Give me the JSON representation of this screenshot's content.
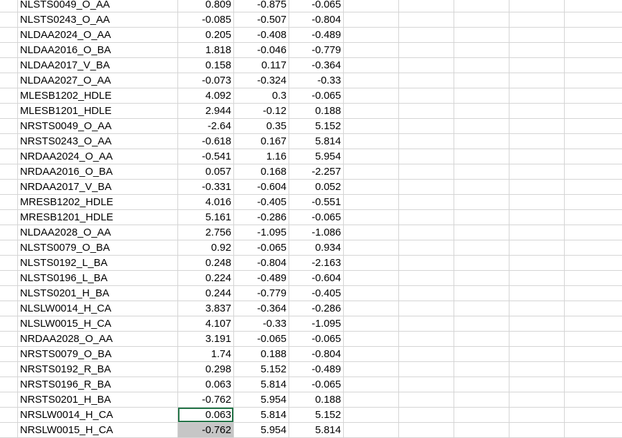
{
  "sheet": {
    "rows": [
      {
        "label": "NLSTS0049_O_AA",
        "v1": "0.809",
        "v2": "-0.875",
        "v3": "-0.065"
      },
      {
        "label": "NLSTS0243_O_AA",
        "v1": "-0.085",
        "v2": "-0.507",
        "v3": "-0.804"
      },
      {
        "label": "NLDAA2024_O_AA",
        "v1": "0.205",
        "v2": "-0.408",
        "v3": "-0.489"
      },
      {
        "label": "NLDAA2016_O_BA",
        "v1": "1.818",
        "v2": "-0.046",
        "v3": "-0.779"
      },
      {
        "label": "NLDAA2017_V_BA",
        "v1": "0.158",
        "v2": "0.117",
        "v3": "-0.364"
      },
      {
        "label": "NLDAA2027_O_AA",
        "v1": "-0.073",
        "v2": "-0.324",
        "v3": "-0.33"
      },
      {
        "label": "MLESB1202_HDLE",
        "v1": "4.092",
        "v2": "0.3",
        "v3": "-0.065"
      },
      {
        "label": "MLESB1201_HDLE",
        "v1": "2.944",
        "v2": "-0.12",
        "v3": "0.188"
      },
      {
        "label": "NRSTS0049_O_AA",
        "v1": "-2.64",
        "v2": "0.35",
        "v3": "5.152"
      },
      {
        "label": "NRSTS0243_O_AA",
        "v1": "-0.618",
        "v2": "0.167",
        "v3": "5.814"
      },
      {
        "label": "NRDAA2024_O_AA",
        "v1": "-0.541",
        "v2": "1.16",
        "v3": "5.954"
      },
      {
        "label": "NRDAA2016_O_BA",
        "v1": "0.057",
        "v2": "0.168",
        "v3": "-2.257"
      },
      {
        "label": "NRDAA2017_V_BA",
        "v1": "-0.331",
        "v2": "-0.604",
        "v3": "0.052"
      },
      {
        "label": "MRESB1202_HDLE",
        "v1": "4.016",
        "v2": "-0.405",
        "v3": "-0.551"
      },
      {
        "label": "MRESB1201_HDLE",
        "v1": "5.161",
        "v2": "-0.286",
        "v3": "-0.065"
      },
      {
        "label": "NLDAA2028_O_AA",
        "v1": "2.756",
        "v2": "-1.095",
        "v3": "-1.086"
      },
      {
        "label": "NLSTS0079_O_BA",
        "v1": "0.92",
        "v2": "-0.065",
        "v3": "0.934"
      },
      {
        "label": "NLSTS0192_L_BA",
        "v1": "0.248",
        "v2": "-0.804",
        "v3": "-2.163"
      },
      {
        "label": "NLSTS0196_L_BA",
        "v1": "0.224",
        "v2": "-0.489",
        "v3": "-0.604"
      },
      {
        "label": "NLSTS0201_H_BA",
        "v1": "0.244",
        "v2": "-0.779",
        "v3": "-0.405"
      },
      {
        "label": "NLSLW0014_H_CA",
        "v1": "3.837",
        "v2": "-0.364",
        "v3": "-0.286"
      },
      {
        "label": "NLSLW0015_H_CA",
        "v1": "4.107",
        "v2": "-0.33",
        "v3": "-1.095"
      },
      {
        "label": "NRDAA2028_O_AA",
        "v1": "3.191",
        "v2": "-0.065",
        "v3": "-0.065"
      },
      {
        "label": "NRSTS0079_O_BA",
        "v1": "1.74",
        "v2": "0.188",
        "v3": "-0.804"
      },
      {
        "label": "NRSTS0192_R_BA",
        "v1": "0.298",
        "v2": "5.152",
        "v3": "-0.489"
      },
      {
        "label": "NRSTS0196_R_BA",
        "v1": "0.063",
        "v2": "5.814",
        "v3": "-0.065"
      },
      {
        "label": "NRSTS0201_H_BA",
        "v1": "-0.762",
        "v2": "5.954",
        "v3": "0.188"
      },
      {
        "label": "NRSLW0014_H_CA",
        "v1": "0.063",
        "v2": "5.814",
        "v3": "5.152"
      },
      {
        "label": "NRSLW0015_H_CA",
        "v1": "-0.762",
        "v2": "5.954",
        "v3": "5.814"
      }
    ],
    "active_row_index": 27,
    "selected_row_index": 28
  },
  "colors": {
    "gridline": "#d4d4d4",
    "active_border": "#217346",
    "selection_fill": "#c6c6c6"
  }
}
